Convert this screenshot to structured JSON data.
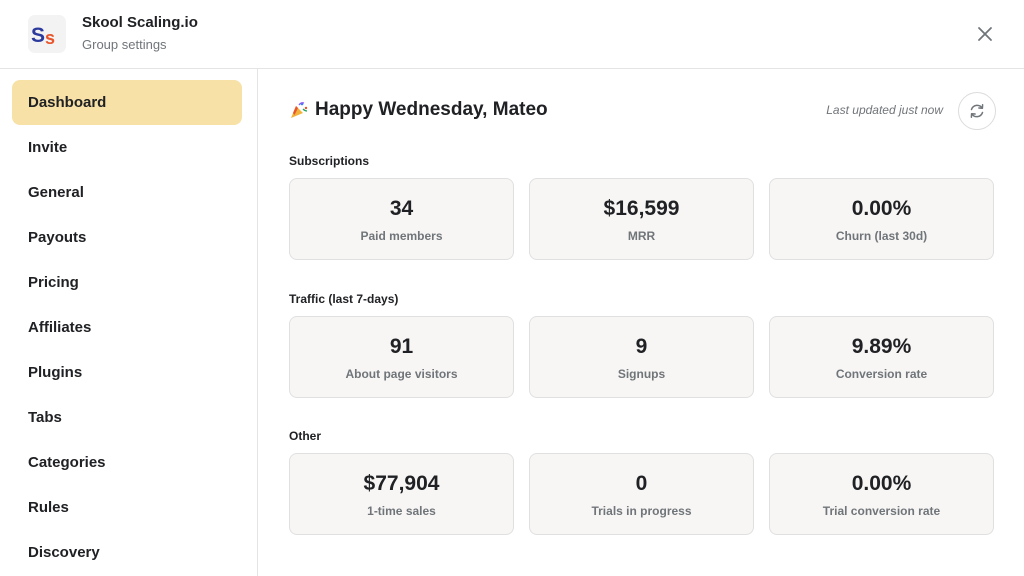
{
  "header": {
    "logo_text": "Ss",
    "group_name": "Skool Scaling.io",
    "subtitle": "Group settings"
  },
  "sidebar": {
    "items": [
      {
        "label": "Dashboard",
        "active": true
      },
      {
        "label": "Invite"
      },
      {
        "label": "General"
      },
      {
        "label": "Payouts"
      },
      {
        "label": "Pricing"
      },
      {
        "label": "Affiliates"
      },
      {
        "label": "Plugins"
      },
      {
        "label": "Tabs"
      },
      {
        "label": "Categories"
      },
      {
        "label": "Rules"
      },
      {
        "label": "Discovery"
      }
    ]
  },
  "main": {
    "greeting": "Happy Wednesday, Mateo",
    "last_updated": "Last updated just now",
    "sections": [
      {
        "title": "Subscriptions",
        "cards": [
          {
            "value": "34",
            "label": "Paid members"
          },
          {
            "value": "$16,599",
            "label": "MRR"
          },
          {
            "value": "0.00%",
            "label": "Churn (last 30d)"
          }
        ]
      },
      {
        "title": "Traffic (last 7-days)",
        "cards": [
          {
            "value": "91",
            "label": "About page visitors"
          },
          {
            "value": "9",
            "label": "Signups"
          },
          {
            "value": "9.89%",
            "label": "Conversion rate"
          }
        ]
      },
      {
        "title": "Other",
        "cards": [
          {
            "value": "$77,904",
            "label": "1-time sales"
          },
          {
            "value": "0",
            "label": "Trials in progress"
          },
          {
            "value": "0.00%",
            "label": "Trial conversion rate"
          }
        ]
      }
    ]
  },
  "colors": {
    "active_nav": "#f8e1a6",
    "card_bg": "#f7f6f4",
    "logo_blue": "#2b3a9c",
    "logo_orange": "#e8552b"
  },
  "icons": {
    "close": "close-icon",
    "refresh": "refresh-icon",
    "greeting": "party-popper-icon"
  }
}
